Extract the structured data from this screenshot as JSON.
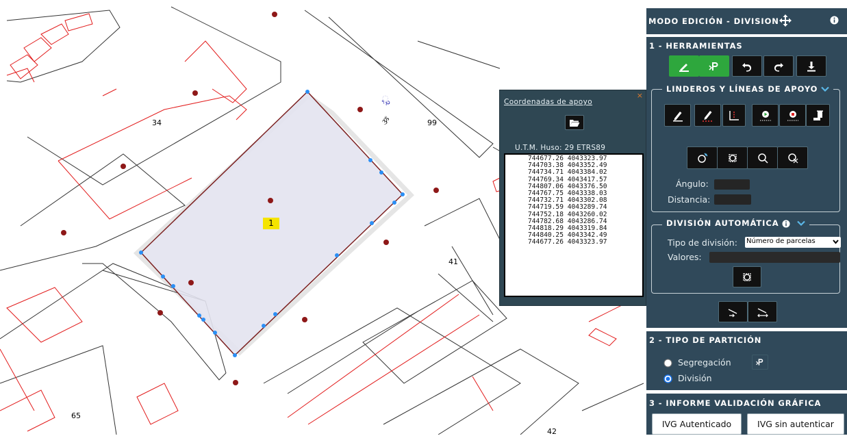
{
  "map": {
    "labels": [
      "34",
      "99",
      "41",
      "65",
      "42"
    ],
    "selected_parcel": "1",
    "street_labels": [
      "ૂ૨",
      "ૐ"
    ]
  },
  "coords_popup": {
    "close": "×",
    "title": "Coordenadas de apoyo",
    "projection": "U.T.M. Huso: 29 ETRS89",
    "coordinates": [
      "744677.26 4043323.97",
      "744703.38 4043352.49",
      "744734.71 4043384.02",
      "744769.34 4043417.57",
      "744807.06 4043376.50",
      "744767.75 4043338.03",
      "744732.71 4043302.08",
      "744719.59 4043289.74",
      "744752.18 4043260.02",
      "744782.68 4043286.74",
      "744818.29 4043319.84",
      "744840.25 4043342.49",
      "744677.26 4043323.97"
    ]
  },
  "panel": {
    "title": "MODO EDICIÓN - DIVISION",
    "s1": {
      "title": "1 - HERRAMIENTAS",
      "linderos_title": "LINDEROS Y LÍNEAS DE APOYO",
      "angulo_label": "Ángulo:",
      "distancia_label": "Distancia:",
      "auto_title": "DIVISIÓN AUTOMÁTICA",
      "tipo_label": "Tipo de división:",
      "tipo_value": "Número de parcelas",
      "valores_label": "Valores:"
    },
    "s2": {
      "title": "2 - TIPO DE PARTICIÓN",
      "option1": "Segregación",
      "option2": "División"
    },
    "s3": {
      "title": "3 - INFORME VALIDACIÓN GRÁFICA",
      "btn1": "IVG Autenticado",
      "btn2": "IVG sin autenticar"
    }
  },
  "colors": {
    "panel_bg": "#30495a",
    "accent_green": "#2ea73d",
    "parcel_line": "#e21b1b"
  }
}
